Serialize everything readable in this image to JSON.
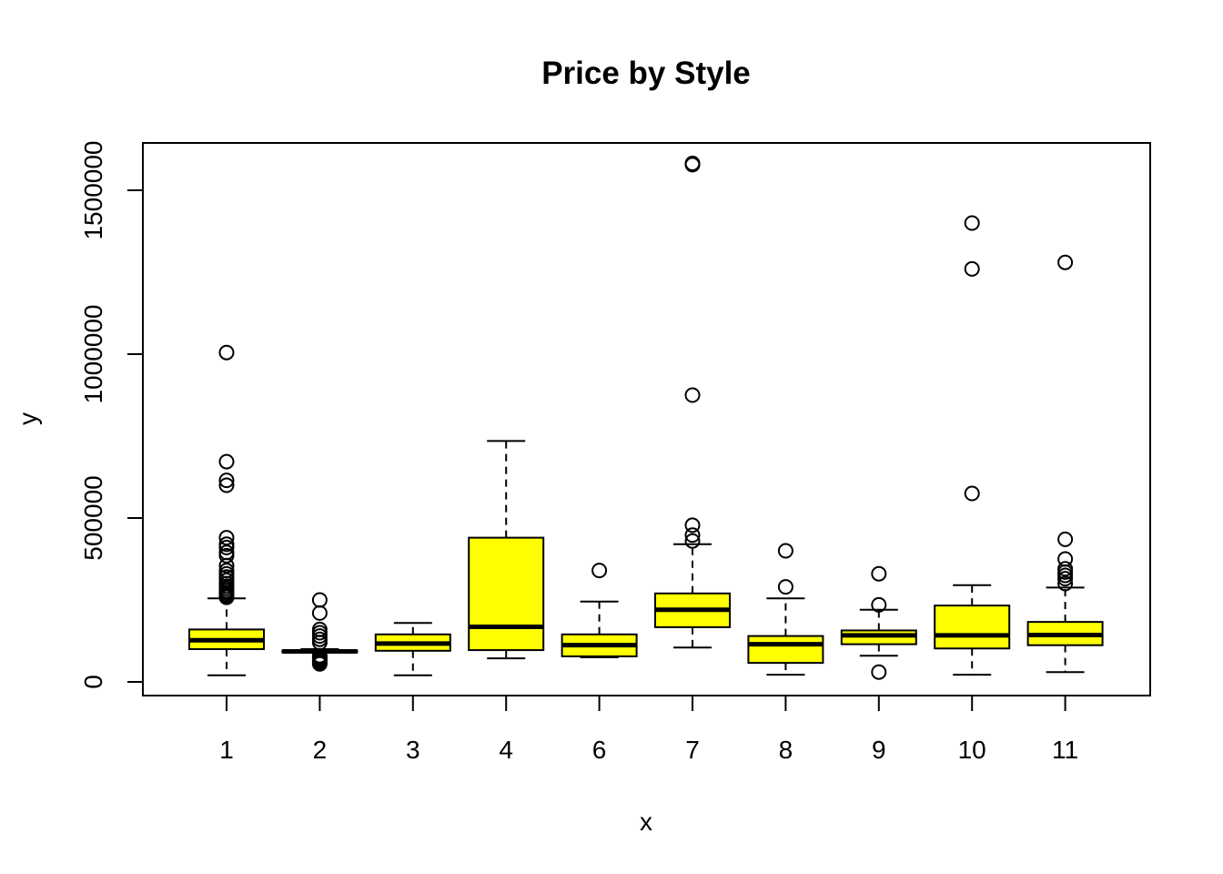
{
  "chart_data": {
    "type": "boxplot",
    "title": "Price by Style",
    "xlabel": "x",
    "ylabel": "y",
    "ylim": [
      -40000,
      1650000
    ],
    "yticks": [
      0,
      500000,
      1000000,
      1500000
    ],
    "ytick_labels": [
      "0",
      "500000",
      "1000000",
      "1500000"
    ],
    "box_fill": "#ffff00",
    "grid": false,
    "categories": [
      "1",
      "2",
      "3",
      "4",
      "6",
      "7",
      "8",
      "9",
      "10",
      "11"
    ],
    "boxes": [
      {
        "category": "1",
        "whisker_low": 20000,
        "q1": 100000,
        "median": 127000,
        "q3": 160000,
        "whisker_high": 255000,
        "outliers": [
          1005000,
          672000,
          615000,
          600000,
          440000,
          420000,
          410000,
          395000,
          385000,
          355000,
          340000,
          330000,
          320000,
          310000,
          300000,
          292000,
          285000,
          278000,
          272000,
          266000,
          262000,
          258000
        ]
      },
      {
        "category": "2",
        "whisker_low": 90000,
        "q1": 90000,
        "median": 93000,
        "q3": 96000,
        "whisker_high": 100000,
        "outliers": [
          250000,
          210000,
          160000,
          150000,
          140000,
          130000,
          120000,
          80000,
          75000,
          70000,
          65000,
          60000,
          55000
        ]
      },
      {
        "category": "3",
        "whisker_low": 20000,
        "q1": 95000,
        "median": 117000,
        "q3": 145000,
        "whisker_high": 180000,
        "outliers": []
      },
      {
        "category": "4",
        "whisker_low": 72000,
        "q1": 97000,
        "median": 168000,
        "q3": 440000,
        "whisker_high": 735000,
        "outliers": []
      },
      {
        "category": "6",
        "whisker_low": 75000,
        "q1": 78000,
        "median": 112000,
        "q3": 145000,
        "whisker_high": 245000,
        "outliers": [
          340000
        ]
      },
      {
        "category": "7",
        "whisker_low": 105000,
        "q1": 167000,
        "median": 220000,
        "q3": 270000,
        "whisker_high": 420000,
        "outliers": [
          1582000,
          1578000,
          875000,
          478000,
          448000,
          430000
        ]
      },
      {
        "category": "8",
        "whisker_low": 22000,
        "q1": 58000,
        "median": 115000,
        "q3": 140000,
        "whisker_high": 255000,
        "outliers": [
          400000,
          290000
        ]
      },
      {
        "category": "9",
        "whisker_low": 80000,
        "q1": 115000,
        "median": 142000,
        "q3": 157000,
        "whisker_high": 220000,
        "outliers": [
          330000,
          235000,
          30000
        ]
      },
      {
        "category": "10",
        "whisker_low": 22000,
        "q1": 102000,
        "median": 142000,
        "q3": 233000,
        "whisker_high": 295000,
        "outliers": [
          1400000,
          1260000,
          575000
        ]
      },
      {
        "category": "11",
        "whisker_low": 30000,
        "q1": 112000,
        "median": 143000,
        "q3": 183000,
        "whisker_high": 288000,
        "outliers": [
          1280000,
          435000,
          375000,
          345000,
          335000,
          325000,
          315000,
          300000
        ]
      }
    ]
  }
}
